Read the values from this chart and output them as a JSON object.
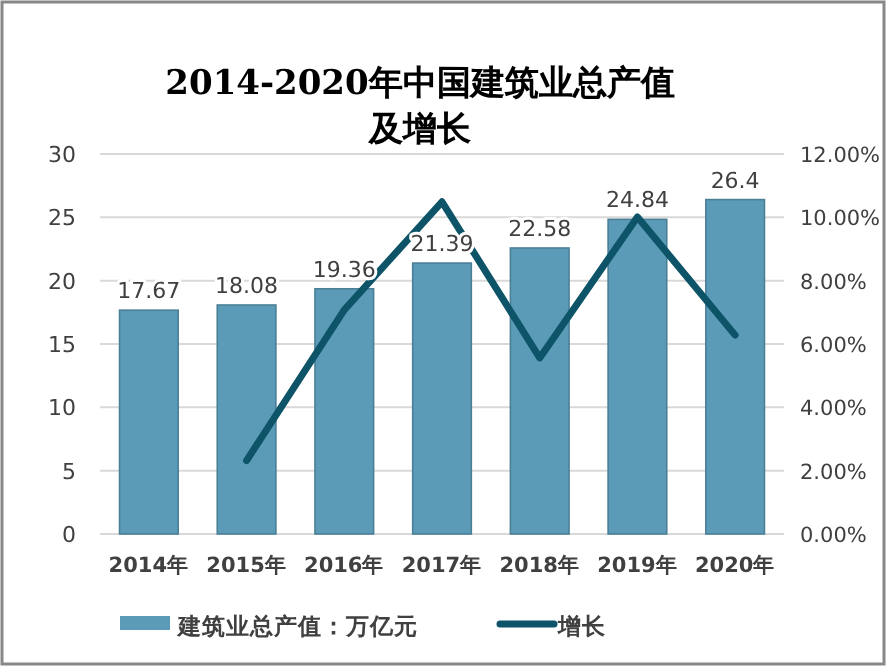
{
  "chart_data": {
    "type": "bar",
    "title": "2014-2020年中国建筑业总产值及增长",
    "categories": [
      "2014年",
      "2015年",
      "2016年",
      "2017年",
      "2018年",
      "2019年",
      "2020年"
    ],
    "series": [
      {
        "name": "建筑业总产值：万亿元",
        "color": "#5b9bb8",
        "values": [
          17.67,
          18.08,
          19.36,
          21.39,
          22.58,
          24.84,
          26.4
        ],
        "data_labels": true
      },
      {
        "name": "增长",
        "type": "line",
        "axis": "y2",
        "color": "#0d5468",
        "values": [
          null,
          2.32,
          7.08,
          10.49,
          5.56,
          10.01,
          6.28
        ]
      }
    ],
    "ylim": [
      0,
      30
    ],
    "yticks": [
      0,
      5,
      10,
      15,
      20,
      25,
      30
    ],
    "y2lim": [
      0,
      12
    ],
    "y2ticks": [
      {
        "value": 0,
        "label": "0.00%"
      },
      {
        "value": 2,
        "label": "2.00%"
      },
      {
        "value": 4,
        "label": "4.00%"
      },
      {
        "value": 6,
        "label": "6.00%"
      },
      {
        "value": 8,
        "label": "8.00%"
      },
      {
        "value": 10,
        "label": "10.00%"
      },
      {
        "value": 12,
        "label": "12.00%"
      }
    ],
    "grid": "y",
    "legend": "bottom",
    "marker": "none"
  }
}
